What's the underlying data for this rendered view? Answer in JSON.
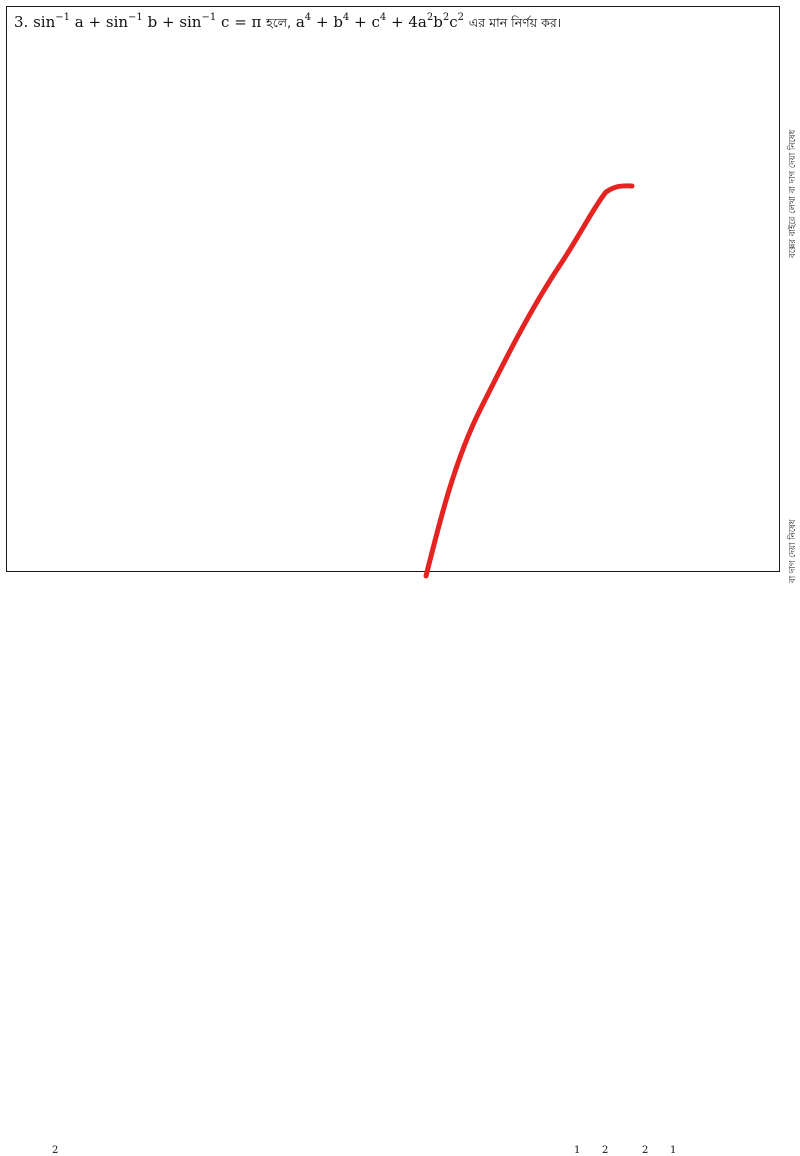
{
  "question": {
    "number": "3.",
    "fn": "sin",
    "inv": "−1",
    "vars": [
      "a",
      "b",
      "c"
    ],
    "plus": "+",
    "eq_pi": "= π",
    "hole_text": "হলে,",
    "expr": {
      "a": "a",
      "b": "b",
      "c": "c",
      "p4": "4",
      "p2": "2",
      "coef": "4a"
    },
    "instruction": "এর মান নির্ণয় কর।"
  },
  "side_notes": [
    "বক্সের বাইরে লেখা বা দাগ দেয়া নিষেধ",
    "বা দাগ দেয়া নিষেধ"
  ],
  "bottom_fragments": [
    "2",
    "1",
    "2",
    "2",
    "1"
  ],
  "annotation": {
    "color": "#e52421"
  }
}
